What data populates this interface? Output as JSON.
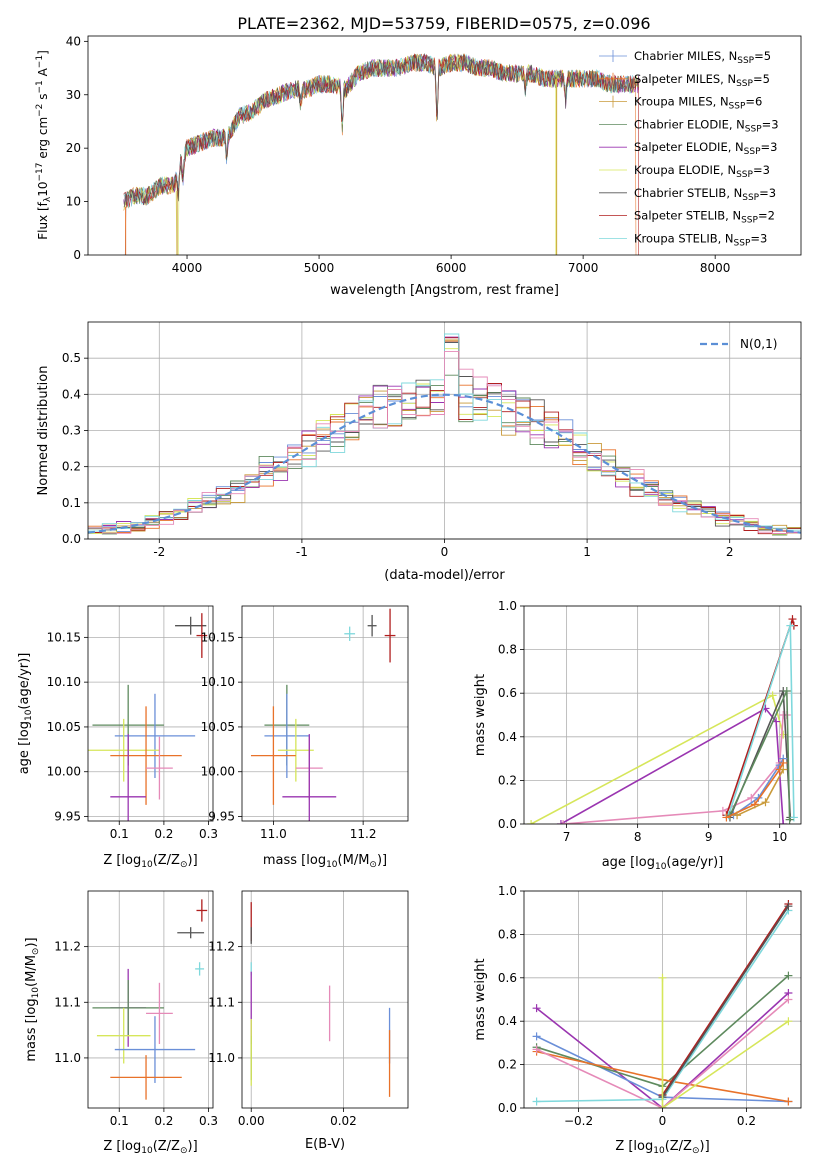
{
  "figure_title": "PLATE=2362, MJD=53759, FIBERID=0575, z=0.096",
  "colors": {
    "Chabrier MILES": "#6a8fd8",
    "Salpeter MILES": "#e8722a",
    "Kroupa MILES": "#c99a3a",
    "Chabrier ELODIE": "#5e8a5e",
    "Salpeter ELODIE": "#9a35b0",
    "Kroupa ELODIE": "#d6e65a",
    "Chabrier STELIB": "#555555",
    "Salpeter STELIB": "#b01f1f",
    "Kroupa STELIB": "#7fd8dc",
    "pink": "#e58ab8",
    "normal_curve": "#5b8fd6"
  },
  "chart_data": [
    {
      "id": "spectrum",
      "type": "line",
      "xlabel": "wavelength [Angstrom, rest frame]",
      "ylabel": "Flux [f",
      "xlim": [
        3250,
        8650
      ],
      "ylim": [
        0,
        41
      ],
      "xticks": [
        4000,
        5000,
        6000,
        7000,
        8000
      ],
      "yticks": [
        0,
        10,
        20,
        30,
        40
      ],
      "legend": "top-right",
      "series": [
        {
          "name": "Chabrier MILES, N",
          "nssp": "=5"
        },
        {
          "name": "Salpeter MILES, N",
          "nssp": "=5"
        },
        {
          "name": "Kroupa MILES, N",
          "nssp": "=6"
        },
        {
          "name": "Chabrier ELODIE, N",
          "nssp": "=3"
        },
        {
          "name": "Salpeter ELODIE, N",
          "nssp": "=3"
        },
        {
          "name": "Kroupa ELODIE, N",
          "nssp": "=3"
        },
        {
          "name": "Chabrier STELIB, N",
          "nssp": "=3"
        },
        {
          "name": "Salpeter STELIB, N",
          "nssp": "=2"
        },
        {
          "name": "Kroupa STELIB, N",
          "nssp": "=3"
        }
      ],
      "continuum": [
        [
          3520,
          10
        ],
        [
          3600,
          11
        ],
        [
          3700,
          11
        ],
        [
          3800,
          13
        ],
        [
          3900,
          13
        ],
        [
          3960,
          18
        ],
        [
          4000,
          20
        ],
        [
          4100,
          21
        ],
        [
          4200,
          22
        ],
        [
          4300,
          22
        ],
        [
          4400,
          26
        ],
        [
          4500,
          27
        ],
        [
          4600,
          29
        ],
        [
          4700,
          30
        ],
        [
          4800,
          31
        ],
        [
          4900,
          31
        ],
        [
          5000,
          32
        ],
        [
          5100,
          32
        ],
        [
          5200,
          31
        ],
        [
          5300,
          34
        ],
        [
          5400,
          35
        ],
        [
          5500,
          35
        ],
        [
          5600,
          35
        ],
        [
          5700,
          36
        ],
        [
          5800,
          36
        ],
        [
          5900,
          35
        ],
        [
          6000,
          36
        ],
        [
          6100,
          36
        ],
        [
          6200,
          35
        ],
        [
          6300,
          35
        ],
        [
          6400,
          34
        ],
        [
          6500,
          34
        ],
        [
          6600,
          34
        ],
        [
          6700,
          33
        ],
        [
          6800,
          33
        ],
        [
          6900,
          33
        ],
        [
          7000,
          33
        ],
        [
          7100,
          33
        ],
        [
          7200,
          32
        ],
        [
          7300,
          32
        ],
        [
          7400,
          32
        ]
      ],
      "absorption": [
        [
          3934,
          5
        ],
        [
          3969,
          5
        ],
        [
          4300,
          4
        ],
        [
          4861,
          3
        ],
        [
          5175,
          8
        ],
        [
          5893,
          11
        ],
        [
          6563,
          3
        ],
        [
          6868,
          4
        ]
      ]
    },
    {
      "id": "residuals",
      "type": "bar",
      "xlabel": "(data-model)/error",
      "ylabel": "Normed distribution",
      "xlim": [
        -2.5,
        2.5
      ],
      "ylim": [
        0,
        0.6
      ],
      "xticks": [
        -2,
        -1,
        0,
        1,
        2
      ],
      "yticks": [
        0.0,
        0.1,
        0.2,
        0.3,
        0.4,
        0.5
      ],
      "legend": "top-right",
      "legend_label": "N(0,1)",
      "bin_width": 0.1
    },
    {
      "id": "age-vs-Z",
      "type": "scatter",
      "xlabel": "Z [log",
      "ylabel": "age  [log",
      "xlim": [
        0.03,
        0.31
      ],
      "ylim": [
        9.945,
        10.185
      ],
      "xticks": [
        0.1,
        0.2,
        0.3
      ],
      "yticks": [
        9.95,
        10.0,
        10.05,
        10.1,
        10.15
      ],
      "points": [
        {
          "c": "Chabrier STELIB",
          "x": 0.26,
          "y": 10.163,
          "xe": 0.035,
          "ye": 0.01
        },
        {
          "c": "Salpeter STELIB",
          "x": 0.285,
          "y": 10.152,
          "xe": 0.012,
          "ye": 0.025
        },
        {
          "c": "Chabrier ELODIE",
          "x": 0.12,
          "y": 10.052,
          "xe": 0.08,
          "ye": 0.045
        },
        {
          "c": "Chabrier MILES",
          "x": 0.18,
          "y": 10.04,
          "xe": 0.09,
          "ye": 0.047
        },
        {
          "c": "Kroupa ELODIE",
          "x": 0.11,
          "y": 10.024,
          "xe": 0.08,
          "ye": 0.035
        },
        {
          "c": "Salpeter MILES",
          "x": 0.16,
          "y": 10.018,
          "xe": 0.08,
          "ye": 0.055
        },
        {
          "c": "pink",
          "x": 0.19,
          "y": 10.004,
          "xe": 0.03,
          "ye": 0.035
        },
        {
          "c": "Salpeter ELODIE",
          "x": 0.12,
          "y": 9.972,
          "xe": 0.04,
          "ye": 0.07
        }
      ]
    },
    {
      "id": "age-vs-mass",
      "type": "scatter",
      "xlabel": "mass [log",
      "ylabel": "",
      "xlim": [
        10.93,
        11.3
      ],
      "ylim": [
        9.945,
        10.185
      ],
      "xticks": [
        11.0,
        11.2
      ],
      "yticks": [
        9.95,
        10.0,
        10.05,
        10.1,
        10.15
      ],
      "points": [
        {
          "c": "Chabrier STELIB",
          "x": 11.22,
          "y": 10.163,
          "xe": 0.01,
          "ye": 0.012
        },
        {
          "c": "Kroupa STELIB",
          "x": 11.17,
          "y": 10.154,
          "xe": 0.012,
          "ye": 0.008
        },
        {
          "c": "Salpeter STELIB",
          "x": 11.26,
          "y": 10.152,
          "xe": 0.012,
          "ye": 0.03
        },
        {
          "c": "Chabrier ELODIE",
          "x": 11.03,
          "y": 10.052,
          "xe": 0.05,
          "ye": 0.045
        },
        {
          "c": "Chabrier MILES",
          "x": 11.03,
          "y": 10.04,
          "xe": 0.05,
          "ye": 0.047
        },
        {
          "c": "Kroupa ELODIE",
          "x": 11.05,
          "y": 10.024,
          "xe": 0.04,
          "ye": 0.035
        },
        {
          "c": "Salpeter MILES",
          "x": 11.0,
          "y": 10.018,
          "xe": 0.05,
          "ye": 0.055
        },
        {
          "c": "pink",
          "x": 11.08,
          "y": 10.004,
          "xe": 0.03,
          "ye": 0.035
        },
        {
          "c": "Salpeter ELODIE",
          "x": 11.08,
          "y": 9.972,
          "xe": 0.06,
          "ye": 0.07
        }
      ]
    },
    {
      "id": "weight-vs-age",
      "type": "line",
      "xlabel": "age  [log",
      "ylabel": "mass weight",
      "xlim": [
        6.4,
        10.3
      ],
      "ylim": [
        0,
        1.0
      ],
      "xticks": [
        7,
        8,
        9,
        10
      ],
      "yticks": [
        0.0,
        0.2,
        0.4,
        0.6,
        0.8,
        1.0
      ],
      "series": [
        {
          "c": "Kroupa ELODIE",
          "pts": [
            [
              6.5,
              0.0
            ],
            [
              9.9,
              0.59
            ],
            [
              10.05,
              0.41
            ]
          ]
        },
        {
          "c": "Salpeter ELODIE",
          "pts": [
            [
              6.92,
              0.0
            ],
            [
              9.8,
              0.53
            ],
            [
              9.95,
              0.47
            ],
            [
              10.05,
              0.0
            ]
          ]
        },
        {
          "c": "pink",
          "pts": [
            [
              6.95,
              0.0
            ],
            [
              9.2,
              0.06
            ],
            [
              9.6,
              0.12
            ],
            [
              10.0,
              0.28
            ],
            [
              10.05,
              0.5
            ],
            [
              10.1,
              0.5
            ]
          ]
        },
        {
          "c": "Chabrier STELIB",
          "pts": [
            [
              9.3,
              0.03
            ],
            [
              10.05,
              0.61
            ],
            [
              10.15,
              0.03
            ]
          ]
        },
        {
          "c": "Salpeter STELIB",
          "pts": [
            [
              9.25,
              0.04
            ],
            [
              10.18,
              0.94
            ],
            [
              10.2,
              0.91
            ]
          ]
        },
        {
          "c": "Kroupa STELIB",
          "pts": [
            [
              9.28,
              0.04
            ],
            [
              10.15,
              0.91
            ],
            [
              10.2,
              0.03
            ]
          ]
        },
        {
          "c": "Chabrier ELODIE",
          "pts": [
            [
              9.3,
              0.04
            ],
            [
              10.1,
              0.61
            ],
            [
              10.14,
              0.02
            ]
          ]
        },
        {
          "c": "Chabrier MILES",
          "pts": [
            [
              9.35,
              0.04
            ],
            [
              9.7,
              0.12
            ],
            [
              10.0,
              0.27
            ],
            [
              10.05,
              0.3
            ]
          ]
        },
        {
          "c": "Salpeter MILES",
          "pts": [
            [
              9.25,
              0.03
            ],
            [
              9.65,
              0.09
            ],
            [
              10.0,
              0.25
            ],
            [
              10.05,
              0.28
            ]
          ]
        },
        {
          "c": "Kroupa MILES",
          "pts": [
            [
              9.4,
              0.04
            ],
            [
              9.8,
              0.1
            ],
            [
              10.05,
              0.25
            ]
          ]
        }
      ]
    },
    {
      "id": "mass-vs-Z",
      "type": "scatter",
      "xlabel": "Z [log",
      "ylabel": "mass [log",
      "xlim": [
        0.03,
        0.31
      ],
      "ylim": [
        10.91,
        11.3
      ],
      "xticks": [
        0.1,
        0.2,
        0.3
      ],
      "yticks": [
        11.0,
        11.1,
        11.2
      ],
      "points": [
        {
          "c": "Salpeter STELIB",
          "x": 0.285,
          "y": 11.265,
          "xe": 0.012,
          "ye": 0.02
        },
        {
          "c": "Chabrier STELIB",
          "x": 0.26,
          "y": 11.225,
          "xe": 0.03,
          "ye": 0.01
        },
        {
          "c": "Kroupa STELIB",
          "x": 0.28,
          "y": 11.16,
          "xe": 0.01,
          "ye": 0.012
        },
        {
          "c": "Salpeter ELODIE",
          "x": 0.12,
          "y": 11.09,
          "xe": 0.04,
          "ye": 0.07
        },
        {
          "c": "Chabrier ELODIE",
          "x": 0.12,
          "y": 11.09,
          "xe": 0.08,
          "ye": 0.05
        },
        {
          "c": "pink",
          "x": 0.19,
          "y": 11.08,
          "xe": 0.03,
          "ye": 0.055
        },
        {
          "c": "Kroupa ELODIE",
          "x": 0.11,
          "y": 11.04,
          "xe": 0.06,
          "ye": 0.05
        },
        {
          "c": "Chabrier MILES",
          "x": 0.18,
          "y": 11.015,
          "xe": 0.09,
          "ye": 0.06
        },
        {
          "c": "Salpeter MILES",
          "x": 0.16,
          "y": 10.965,
          "xe": 0.08,
          "ye": 0.04
        }
      ]
    },
    {
      "id": "mass-vs-EBV",
      "type": "scatter",
      "xlabel": "E(B-V)",
      "ylabel": "",
      "xlim": [
        -0.002,
        0.034
      ],
      "ylim": [
        10.91,
        11.3
      ],
      "xticks": [
        0.0,
        0.02
      ],
      "yticks": [
        11.0,
        11.1,
        11.2
      ],
      "points": [
        {
          "c": "Salpeter STELIB",
          "x": 0.0,
          "y": 11.245,
          "ye": 0.035
        },
        {
          "c": "Chabrier STELIB",
          "x": 0.0,
          "y": 11.22,
          "ye": 0.015
        },
        {
          "c": "Kroupa STELIB",
          "x": 0.0,
          "y": 11.16,
          "ye": 0.012
        },
        {
          "c": "Salpeter ELODIE",
          "x": 0.0,
          "y": 11.09,
          "ye": 0.065
        },
        {
          "c": "Chabrier ELODIE",
          "x": 0.0,
          "y": 11.0,
          "ye": 0.04
        },
        {
          "c": "Kroupa ELODIE",
          "x": 0.0,
          "y": 11.01,
          "ye": 0.06
        },
        {
          "c": "pink",
          "x": 0.017,
          "y": 11.08,
          "ye": 0.05
        },
        {
          "c": "Chabrier MILES",
          "x": 0.03,
          "y": 11.04,
          "ye": 0.05
        },
        {
          "c": "Salpeter MILES",
          "x": 0.03,
          "y": 10.99,
          "ye": 0.06
        }
      ]
    },
    {
      "id": "weight-vs-Z",
      "type": "line",
      "xlabel": "Z [log",
      "ylabel": "mass weight",
      "xlim": [
        -0.33,
        0.33
      ],
      "ylim": [
        0,
        1.0
      ],
      "xticks": [
        -0.2,
        0.0,
        0.2
      ],
      "yticks": [
        0.0,
        0.2,
        0.4,
        0.6,
        0.8,
        1.0
      ],
      "series": [
        {
          "c": "Salpeter ELODIE",
          "pts": [
            [
              -0.3,
              0.46
            ],
            [
              0.0,
              0.0
            ],
            [
              0.3,
              0.53
            ]
          ]
        },
        {
          "c": "Chabrier MILES",
          "pts": [
            [
              -0.3,
              0.33
            ],
            [
              0.0,
              0.05
            ],
            [
              0.3,
              0.03
            ]
          ]
        },
        {
          "c": "Chabrier ELODIE",
          "pts": [
            [
              -0.3,
              0.28
            ],
            [
              0.0,
              0.1
            ],
            [
              0.3,
              0.61
            ]
          ]
        },
        {
          "c": "Salpeter MILES",
          "pts": [
            [
              -0.3,
              0.26
            ],
            [
              0.0,
              0.13
            ],
            [
              0.3,
              0.03
            ]
          ]
        },
        {
          "c": "pink",
          "pts": [
            [
              -0.3,
              0.27
            ],
            [
              0.0,
              0.0
            ],
            [
              0.3,
              0.5
            ]
          ]
        },
        {
          "c": "Kroupa STELIB",
          "pts": [
            [
              -0.3,
              0.03
            ],
            [
              0.0,
              0.04
            ],
            [
              0.3,
              0.91
            ]
          ]
        },
        {
          "c": "Salpeter STELIB",
          "pts": [
            [
              0.0,
              0.06
            ],
            [
              0.3,
              0.94
            ]
          ]
        },
        {
          "c": "Chabrier STELIB",
          "pts": [
            [
              0.0,
              0.05
            ],
            [
              0.3,
              0.93
            ]
          ]
        },
        {
          "c": "Kroupa ELODIE",
          "pts": [
            [
              0.0,
              0.6
            ],
            [
              0.0,
              0.0
            ],
            [
              0.3,
              0.4
            ]
          ]
        }
      ]
    }
  ]
}
